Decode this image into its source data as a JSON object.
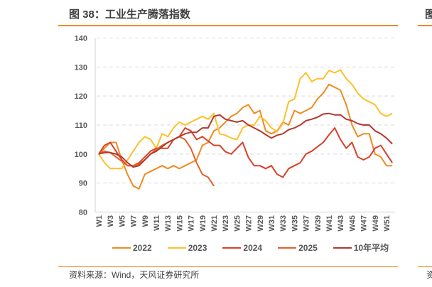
{
  "title": "图 38：工业生产腾落指数",
  "source": "资料来源：Wind，天风证券研究所",
  "right_panel": {
    "title_fragment": "图",
    "source_fragment": "资"
  },
  "chart_data": {
    "type": "line",
    "title": "图 38：工业生产腾落指数",
    "xlabel": "",
    "ylabel": "",
    "ylim": [
      80,
      140
    ],
    "yticks": [
      80,
      90,
      100,
      110,
      120,
      130,
      140
    ],
    "grid": "horizontal dashed",
    "legend": "bottom",
    "x": [
      "W1",
      "W2",
      "W3",
      "W4",
      "W5",
      "W6",
      "W7",
      "W8",
      "W9",
      "W10",
      "W11",
      "W12",
      "W13",
      "W14",
      "W15",
      "W16",
      "W17",
      "W18",
      "W19",
      "W20",
      "W21",
      "W22",
      "W23",
      "W24",
      "W25",
      "W26",
      "W27",
      "W28",
      "W29",
      "W30",
      "W31",
      "W32",
      "W33",
      "W34",
      "W35",
      "W36",
      "W37",
      "W38",
      "W39",
      "W40",
      "W41",
      "W42",
      "W43",
      "W44",
      "W45",
      "W46",
      "W47",
      "W48",
      "W49",
      "W50",
      "W51",
      "W52"
    ],
    "xtick_labels": [
      "W1",
      "W3",
      "W5",
      "W7",
      "W9",
      "W11",
      "W13",
      "W15",
      "W17",
      "W19",
      "W21",
      "W23",
      "W25",
      "W27",
      "W29",
      "W31",
      "W33",
      "W35",
      "W37",
      "W39",
      "W41",
      "W43",
      "W45",
      "W47",
      "W49",
      "W51"
    ],
    "series": [
      {
        "name": "2022",
        "color": "#F08A24",
        "values": [
          100,
          102,
          104,
          104,
          98,
          93,
          89,
          88,
          93,
          94,
          95,
          96,
          95,
          96,
          95,
          96,
          97,
          98,
          103,
          104,
          108,
          109,
          111,
          113,
          114,
          116,
          117,
          114,
          115,
          108,
          107,
          108,
          111,
          110,
          115,
          114,
          115,
          116,
          119,
          121,
          124,
          123,
          122,
          117,
          110,
          106,
          107,
          107,
          100,
          99,
          96,
          96
        ]
      },
      {
        "name": "2023",
        "color": "#FFC02A",
        "values": [
          100,
          97,
          95,
          95,
          95,
          98,
          101,
          104,
          106,
          105,
          102,
          107,
          106,
          109,
          111,
          110,
          111,
          112,
          113,
          112,
          114,
          107,
          106.5,
          105.5,
          105,
          109,
          110,
          110,
          113,
          111.5,
          109,
          107.7,
          110.6,
          118,
          119,
          126,
          128,
          125,
          126,
          126,
          128.8,
          128,
          129,
          126,
          124,
          121,
          119,
          118,
          117,
          114,
          113,
          114
        ]
      },
      {
        "name": "2024",
        "color": "#D8402A",
        "values": [
          100,
          103,
          104,
          101,
          98,
          96,
          96,
          97,
          99,
          101,
          102,
          102,
          102,
          105,
          106,
          109,
          108,
          105,
          106,
          104.5,
          103,
          103,
          100.8,
          100,
          102,
          104,
          98.8,
          96,
          96,
          95,
          96,
          93,
          92,
          95,
          96,
          97,
          100,
          101,
          102.5,
          104,
          106.6,
          109,
          105,
          102,
          104,
          99,
          98,
          99,
          102,
          103,
          100,
          97
        ]
      },
      {
        "name": "2025",
        "color": "#E2622A",
        "values": [
          100,
          101,
          100.5,
          99,
          97.5,
          96,
          96,
          96.5,
          98,
          100,
          101.5,
          103,
          104,
          105,
          106,
          105,
          102,
          97,
          93,
          92,
          89,
          null,
          null,
          null,
          null,
          null,
          null,
          null,
          null,
          null,
          null,
          null,
          null,
          null,
          null,
          null,
          null,
          null,
          null,
          null,
          null,
          null,
          null,
          null,
          null,
          null,
          null,
          null,
          null,
          null,
          null,
          null
        ]
      },
      {
        "name": "10年平均",
        "color": "#B2392E",
        "values": [
          100,
          100.5,
          100.5,
          100,
          99,
          97,
          95.5,
          96,
          98,
          100,
          101,
          102.5,
          104,
          105,
          106,
          107,
          107.5,
          107.5,
          109,
          109,
          113,
          113.5,
          112,
          111.5,
          111,
          111.5,
          110,
          109,
          108,
          106.7,
          105.5,
          106.5,
          107,
          108.4,
          109,
          110,
          111.5,
          112,
          112.7,
          113.8,
          114,
          113.5,
          113.5,
          112,
          111.5,
          110.5,
          110,
          110,
          108,
          107,
          105.5,
          103.5
        ]
      }
    ]
  }
}
